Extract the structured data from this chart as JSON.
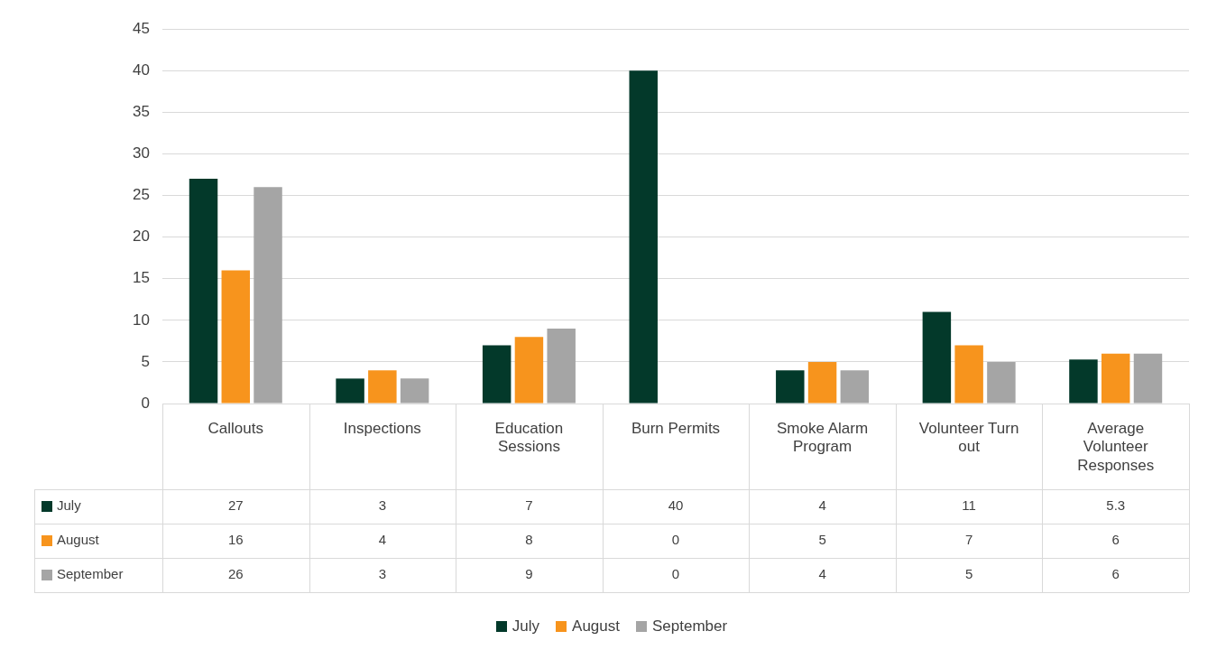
{
  "chart_data": {
    "type": "bar",
    "categories": [
      "Callouts",
      "Inspections",
      "Education Sessions",
      "Burn Permits",
      "Smoke Alarm Program",
      "Volunteer Turn out",
      "Average Volunteer Responses"
    ],
    "series": [
      {
        "name": "July",
        "color": "#03392a",
        "values": [
          27,
          3,
          7,
          40,
          4,
          11,
          5.3
        ]
      },
      {
        "name": "August",
        "color": "#f7941d",
        "values": [
          16,
          4,
          8,
          0,
          5,
          7,
          6
        ]
      },
      {
        "name": "September",
        "color": "#a5a5a5",
        "values": [
          26,
          3,
          9,
          0,
          4,
          5,
          6
        ]
      }
    ],
    "ylim": [
      0,
      45
    ],
    "yticks": [
      0,
      5,
      10,
      15,
      20,
      25,
      30,
      35,
      40,
      45
    ],
    "grid": "y",
    "legend": "bottom",
    "data_labels": true
  }
}
